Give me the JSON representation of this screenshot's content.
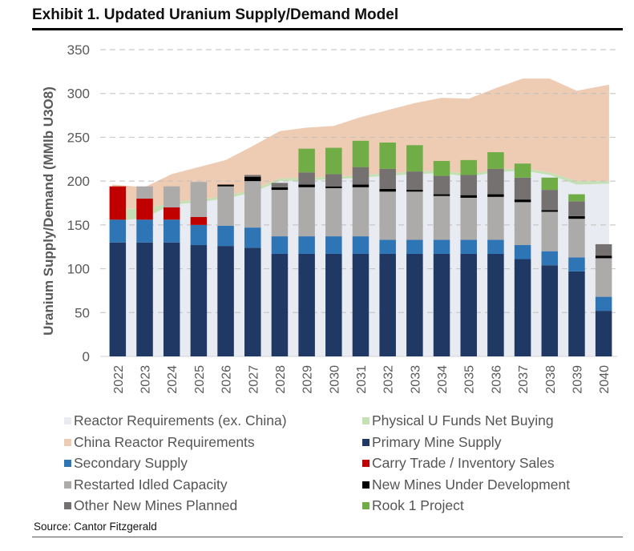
{
  "title": "Exhibit 1. Updated Uranium Supply/Demand Model",
  "source": "Source: Cantor Fitzgerald",
  "chart_data": {
    "type": "bar",
    "stacked": true,
    "title": "Exhibit 1. Updated Uranium Supply/Demand Model",
    "xlabel": "",
    "ylabel": "Uranium Supply/Demand (MMlb U3O8)",
    "ylim": [
      0,
      350
    ],
    "yticks": [
      0,
      50,
      100,
      150,
      200,
      250,
      300,
      350
    ],
    "grid": true,
    "legend_position": "bottom",
    "categories": [
      "2022",
      "2023",
      "2024",
      "2025",
      "2026",
      "2027",
      "2028",
      "2029",
      "2030",
      "2031",
      "2032",
      "2033",
      "2034",
      "2035",
      "2036",
      "2037",
      "2038",
      "2039",
      "2040"
    ],
    "area_series": [
      {
        "name": "Reactor Requirements (ex. China)",
        "color": "#e8ebf1",
        "values": [
          154,
          158,
          173,
          176,
          180,
          187,
          200,
          201,
          202,
          204,
          206,
          208,
          209,
          205,
          210,
          212,
          207,
          196,
          197
        ]
      },
      {
        "name": "Physical U Funds Net Buying",
        "color": "#c5e0b4",
        "values": [
          15,
          10,
          3,
          3,
          3,
          3,
          3,
          3,
          3,
          3,
          3,
          3,
          3,
          3,
          3,
          3,
          3,
          4,
          3
        ]
      },
      {
        "name": "China Reactor Requirements",
        "color": "#eecbb3",
        "values": [
          27,
          25,
          32,
          37,
          41,
          50,
          54,
          57,
          58,
          66,
          72,
          78,
          83,
          86,
          93,
          102,
          107,
          103,
          110
        ]
      }
    ],
    "series": [
      {
        "name": "Primary Mine Supply",
        "color": "#1f3864",
        "values": [
          130,
          130,
          130,
          127,
          126,
          124,
          117,
          117,
          117,
          117,
          117,
          117,
          117,
          117,
          117,
          111,
          104,
          97,
          52
        ]
      },
      {
        "name": "Secondary Supply",
        "color": "#2e75b6",
        "values": [
          26,
          26,
          26,
          23,
          23,
          23,
          20,
          20,
          20,
          20,
          16,
          16,
          16,
          16,
          16,
          16,
          16,
          16,
          16
        ]
      },
      {
        "name": "Carry Trade / Inventory Sales",
        "color": "#c00000",
        "values": [
          38,
          24,
          14,
          9,
          0,
          0,
          0,
          0,
          0,
          0,
          0,
          0,
          0,
          0,
          0,
          0,
          0,
          0,
          0
        ]
      },
      {
        "name": "Restarted Idled Capacity",
        "color": "#adaaaa",
        "values": [
          0,
          14,
          24,
          40,
          45,
          53,
          53,
          56,
          55,
          56,
          55,
          55,
          50,
          48,
          49,
          49,
          45,
          44,
          44
        ]
      },
      {
        "name": "New Mines Under Development",
        "color": "#000000",
        "values": [
          0,
          0,
          0,
          0,
          2,
          5,
          3,
          3,
          2,
          3,
          3,
          2,
          2,
          3,
          3,
          3,
          2,
          3,
          3
        ]
      },
      {
        "name": "Other New Mines Planned",
        "color": "#767171",
        "values": [
          0,
          0,
          0,
          0,
          0,
          2,
          5,
          14,
          14,
          20,
          23,
          21,
          21,
          23,
          29,
          25,
          23,
          17,
          13
        ]
      },
      {
        "name": "Rook 1 Project",
        "color": "#70ad47",
        "values": [
          0,
          0,
          0,
          0,
          0,
          0,
          0,
          27,
          30,
          30,
          30,
          30,
          17,
          17,
          19,
          16,
          14,
          8,
          0
        ]
      }
    ],
    "legend": [
      {
        "label": "Reactor Requirements (ex. China)",
        "color": "#e8ebf1"
      },
      {
        "label": "Physical U Funds Net Buying",
        "color": "#c5e0b4"
      },
      {
        "label": "China Reactor Requirements",
        "color": "#eecbb3"
      },
      {
        "label": "Primary Mine Supply",
        "color": "#1f3864"
      },
      {
        "label": "Secondary Supply",
        "color": "#2e75b6"
      },
      {
        "label": "Carry Trade / Inventory Sales",
        "color": "#c00000"
      },
      {
        "label": "Restarted Idled Capacity",
        "color": "#adaaaa"
      },
      {
        "label": "New Mines Under Development",
        "color": "#000000"
      },
      {
        "label": "Other New Mines Planned",
        "color": "#767171"
      },
      {
        "label": "Rook 1 Project",
        "color": "#70ad47"
      }
    ]
  }
}
